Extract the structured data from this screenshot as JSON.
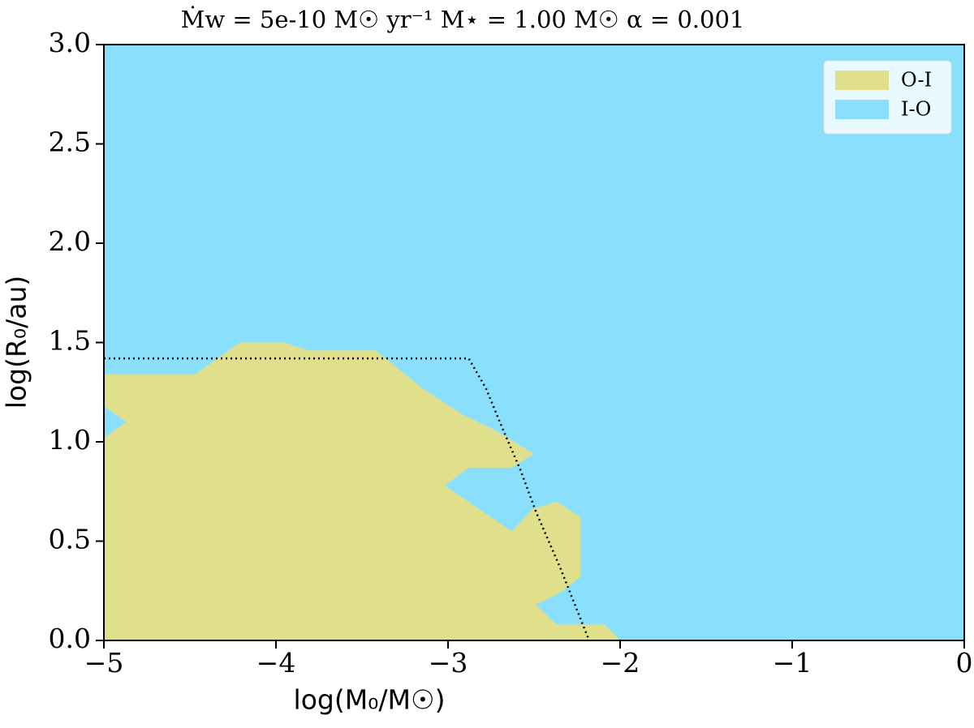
{
  "chart_data": {
    "type": "area",
    "title": "Ṁw = 5e-10 M☉ yr⁻¹     M⋆ = 1.00 M☉     α = 0.001",
    "xlabel": "log(M₀/M☉)",
    "ylabel": "log(R₀/au)",
    "xlim": [
      -5,
      0
    ],
    "ylim": [
      0,
      3
    ],
    "xticks": [
      {
        "value": -5,
        "label": "−5"
      },
      {
        "value": -4,
        "label": "−4"
      },
      {
        "value": -3,
        "label": "−3"
      },
      {
        "value": -2,
        "label": "−2"
      },
      {
        "value": -1,
        "label": "−1"
      },
      0
    ],
    "yticks": [
      {
        "value": 0,
        "label": "0.0"
      },
      {
        "value": 0.5,
        "label": "0.5"
      },
      {
        "value": 1,
        "label": "1.0"
      },
      {
        "value": 1.5,
        "label": "1.5"
      },
      {
        "value": 2,
        "label": "2.0"
      },
      {
        "value": 2.5,
        "label": "2.5"
      },
      {
        "value": 3,
        "label": "3.0"
      }
    ],
    "legend": "upper right",
    "series": [
      {
        "name": "O-I",
        "color": "#e0e08c",
        "x": [
          -5,
          -5,
          -4.87,
          -5,
          -5,
          -4.47,
          -4.21,
          -3.95,
          -3.81,
          -3.42,
          -3.15,
          -2.92,
          -2.73,
          -2.5,
          -2.63,
          -2.88,
          -3.02,
          -2.63,
          -2.51,
          -2.37,
          -2.23,
          -2.23,
          -2.35,
          -2.49,
          -2.37,
          -2.09,
          -2
        ],
        "y": [
          0,
          1.02,
          1.1,
          1.18,
          1.34,
          1.34,
          1.5,
          1.5,
          1.46,
          1.46,
          1.27,
          1.14,
          1.06,
          0.94,
          0.87,
          0.87,
          0.78,
          0.55,
          0.66,
          0.7,
          0.62,
          0.32,
          0.24,
          0.18,
          0.08,
          0.08,
          0
        ]
      },
      {
        "name": "I-O",
        "color": "#8ae0fc",
        "x": [
          -5,
          0,
          0,
          -5
        ],
        "y": [
          0,
          0,
          3,
          3
        ]
      }
    ],
    "lines": [
      {
        "color": "#000000",
        "style": "dotted",
        "x": [
          -5,
          -2.88,
          -2.78,
          -2.68,
          -2.58,
          -2.49,
          -2.35,
          -2.18
        ],
        "y": [
          1.42,
          1.42,
          1.27,
          1.06,
          0.86,
          0.65,
          0.37,
          0
        ]
      }
    ]
  }
}
